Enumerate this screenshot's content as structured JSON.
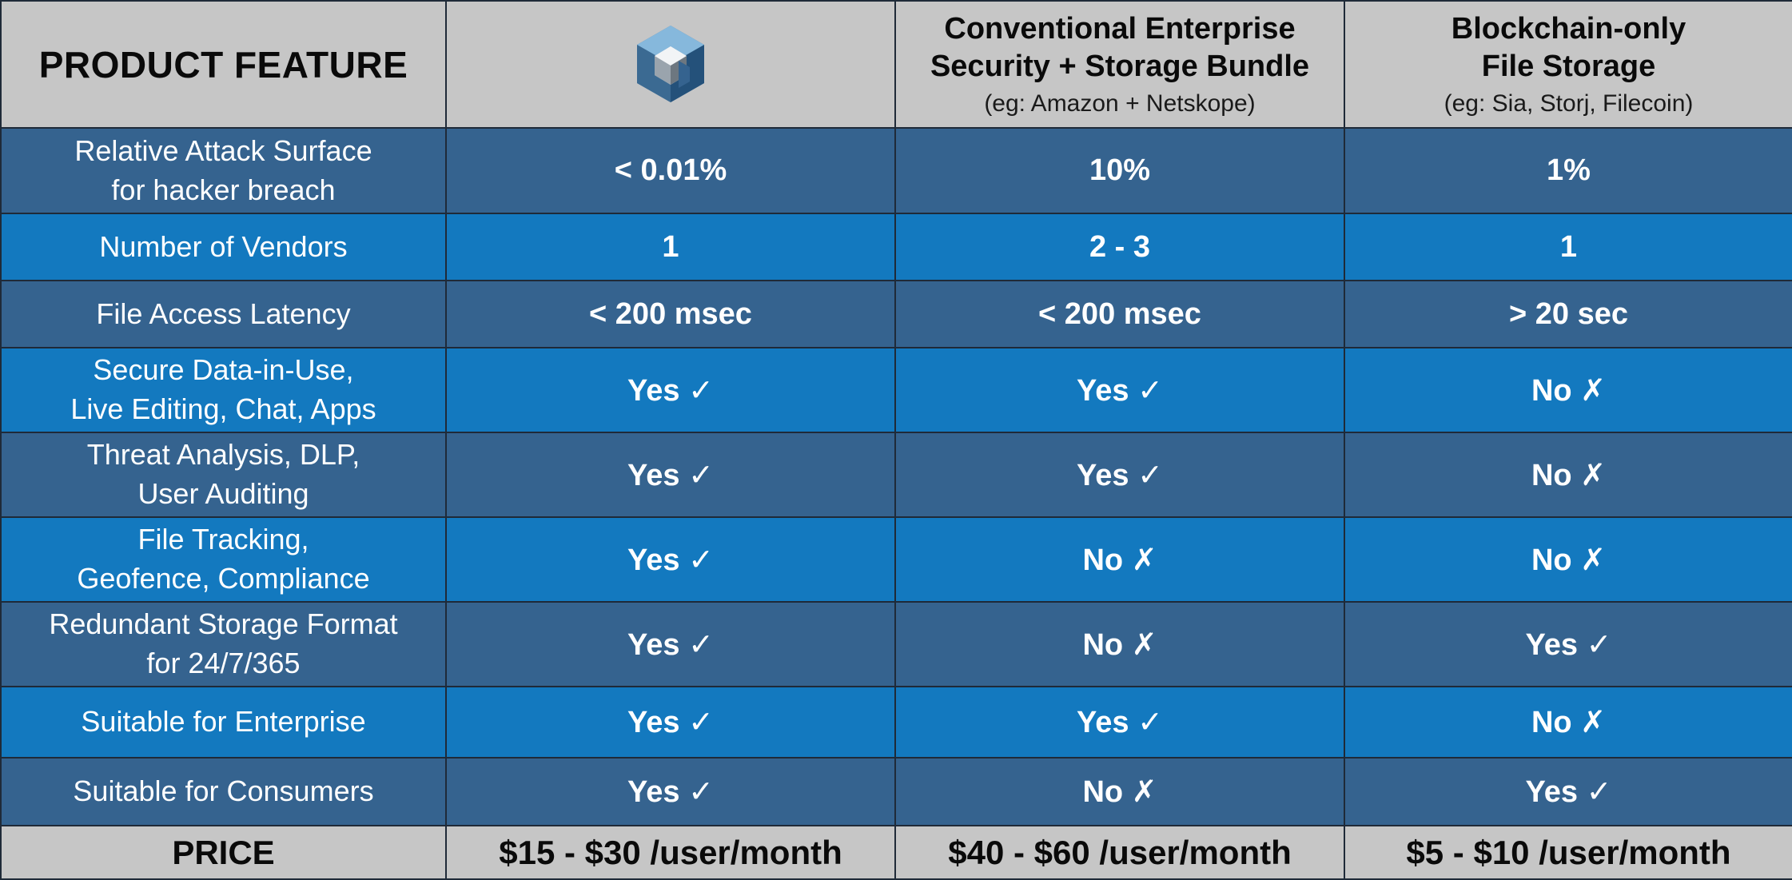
{
  "header": {
    "feature_label": "PRODUCT FEATURE",
    "columns": [
      {
        "logo": "hexagon-cube-logo-icon"
      },
      {
        "title": "Conventional Enterprise\nSecurity + Storage Bundle",
        "subtitle": "(eg: Amazon + Netskope)"
      },
      {
        "title": "Blockchain-only\nFile Storage",
        "subtitle": "(eg: Sia, Storj, Filecoin)"
      }
    ]
  },
  "rows": [
    {
      "feature": "Relative Attack Surface\nfor hacker breach",
      "values": [
        "< 0.01%",
        "10%",
        "1%"
      ]
    },
    {
      "feature": "Number of Vendors",
      "values": [
        "1",
        "2 - 3",
        "1"
      ]
    },
    {
      "feature": "File Access Latency",
      "values": [
        "< 200 msec",
        "< 200 msec",
        "> 20 sec"
      ]
    },
    {
      "feature": "Secure Data-in-Use,\nLive Editing, Chat, Apps",
      "values": [
        "Yes ✓",
        "Yes ✓",
        "No ✗"
      ]
    },
    {
      "feature": "Threat Analysis, DLP,\nUser Auditing",
      "values": [
        "Yes ✓",
        "Yes ✓",
        "No ✗"
      ]
    },
    {
      "feature": "File Tracking,\nGeofence, Compliance",
      "values": [
        "Yes ✓",
        "No ✗",
        "No ✗"
      ]
    },
    {
      "feature": "Redundant Storage Format\nfor 24/7/365",
      "values": [
        "Yes ✓",
        "No ✗",
        "Yes ✓"
      ]
    },
    {
      "feature": "Suitable for Enterprise",
      "values": [
        "Yes ✓",
        "Yes ✓",
        "No ✗"
      ]
    },
    {
      "feature": "Suitable for Consumers",
      "values": [
        "Yes ✓",
        "No ✗",
        "Yes ✓"
      ]
    }
  ],
  "price": {
    "label": "PRICE",
    "values": [
      "$15 - $30 /user/month",
      "$40 - $60 /user/month",
      "$5 - $10 /user/month"
    ]
  },
  "colors": {
    "header_bg": "#c6c6c6",
    "row_dark": "#35638f",
    "row_light": "#1379bf",
    "border": "#1f2a38"
  }
}
